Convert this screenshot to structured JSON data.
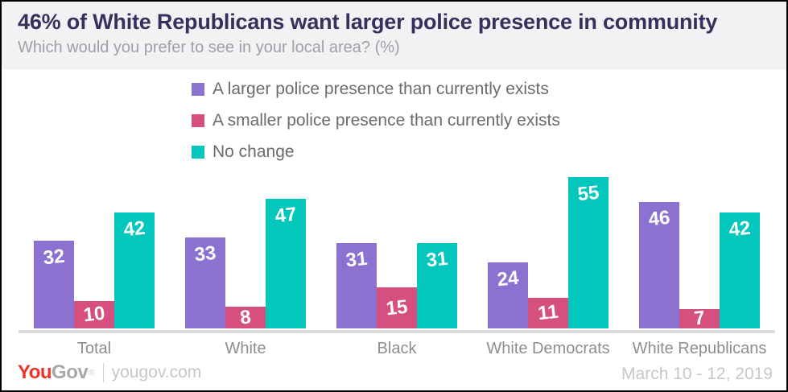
{
  "header": {
    "title": "46% of White Republicans want larger police presence in community",
    "subtitle": "Which would you prefer to see in your local area? (%)"
  },
  "chart_data": {
    "type": "bar",
    "categories": [
      "Total",
      "White",
      "Black",
      "White Democrats",
      "White Republicans"
    ],
    "series": [
      {
        "name": "A larger police presence than currently exists",
        "color": "#8b72d1",
        "values": [
          32,
          33,
          31,
          24,
          46
        ]
      },
      {
        "name": "A smaller police presence than currently exists",
        "color": "#d5507e",
        "values": [
          10,
          8,
          15,
          11,
          7
        ]
      },
      {
        "name": "No change",
        "color": "#03c6bd",
        "values": [
          42,
          47,
          31,
          55,
          42
        ]
      }
    ],
    "ylim": [
      0,
      55
    ],
    "value_labels": "inside-top, white, bold, slightly rotated",
    "legend_position": "top-center",
    "grid": false,
    "baseline_color": "#dddcdf"
  },
  "footer": {
    "logo_you": "You",
    "logo_gov": "Gov",
    "logo_mark": "®",
    "site": "yougov.com",
    "date": "March 10 - 12, 2019"
  }
}
